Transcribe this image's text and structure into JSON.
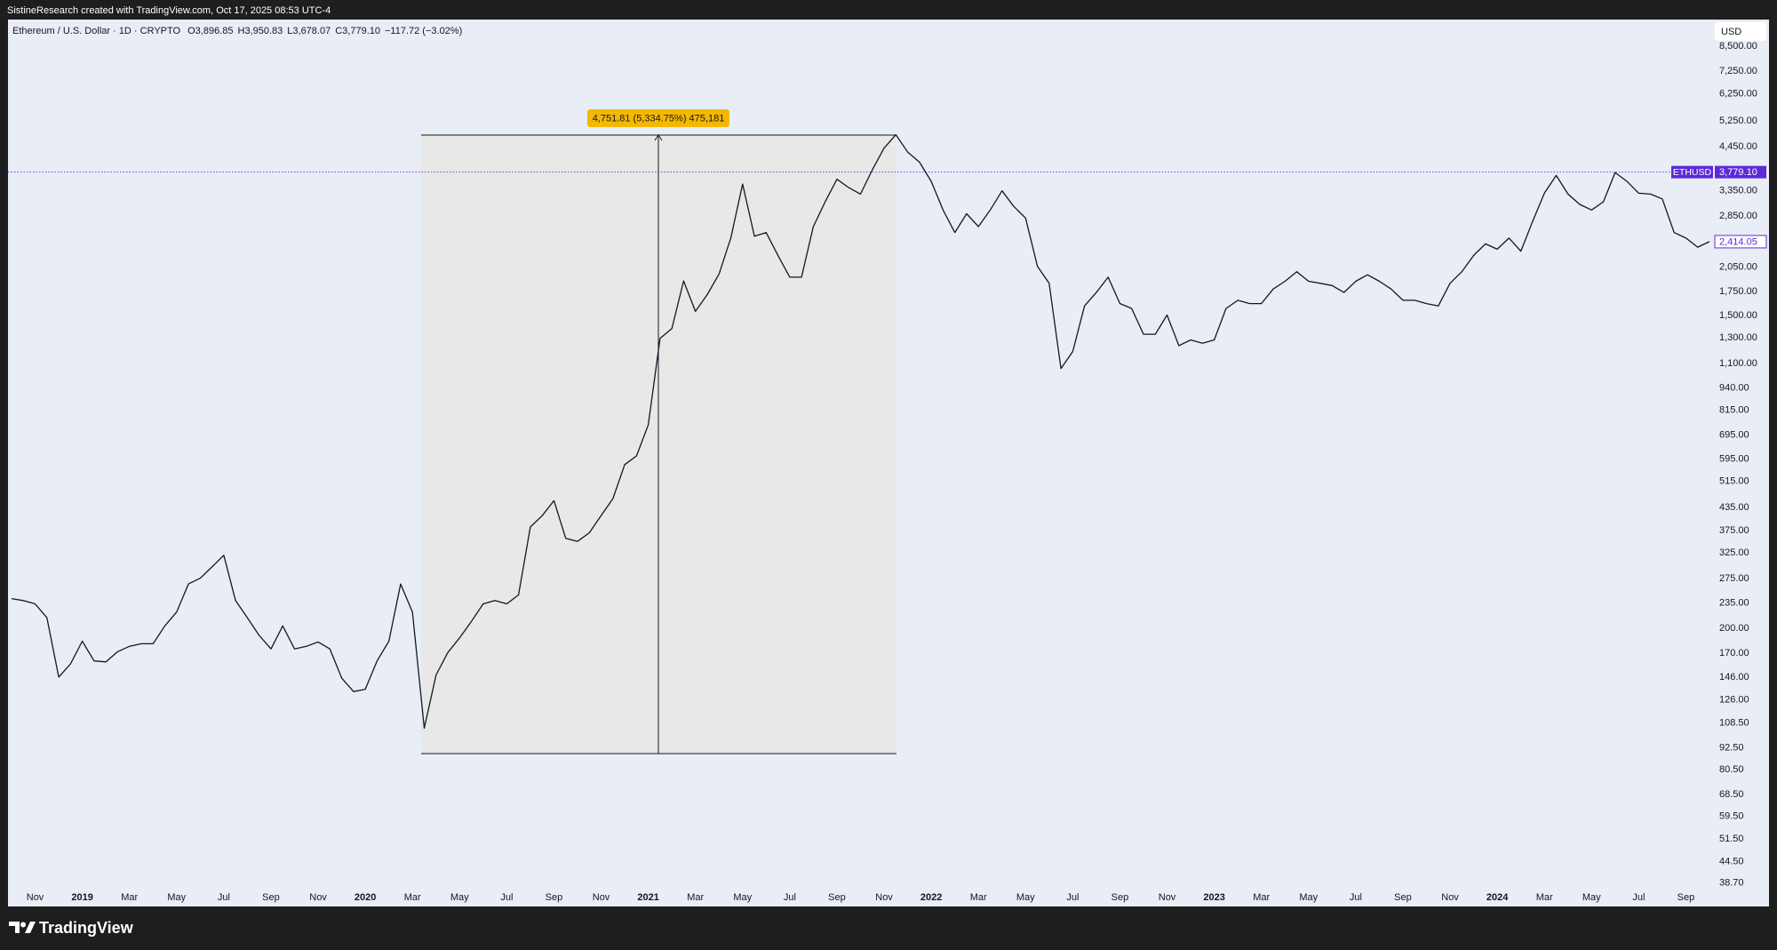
{
  "watermark": "SistineResearch created with TradingView.com, Oct 17, 2025 08:53 UTC-4",
  "brand": "TradingView",
  "chart_data": {
    "type": "line",
    "title": "Ethereum / U.S. Dollar · 1D · CRYPTO",
    "ohlc": [
      {
        "label": "O",
        "value": "3,896.85"
      },
      {
        "label": "H",
        "value": "3,950.83"
      },
      {
        "label": "L",
        "value": "3,678.07"
      },
      {
        "label": "C",
        "value": "3,779.10"
      }
    ],
    "change": "−117.72 (−3.02%)",
    "currency": "USD",
    "yscale": "log",
    "grid": false,
    "color": "#131722",
    "measure_label": "4,751.81 (5,334.75%) 475,181",
    "price_line": {
      "name": "ETHUSD",
      "value": 3779.1,
      "label": "3,779.10",
      "color": "#5b2bd8"
    },
    "last_value_label": "2,414.05",
    "categories": [
      null,
      null,
      "Nov",
      null,
      null,
      null,
      "2019",
      null,
      null,
      null,
      "Mar",
      null,
      null,
      null,
      "May",
      null,
      null,
      null,
      "Jul",
      null,
      null,
      null,
      "Sep",
      null,
      null,
      null,
      "Nov",
      null,
      null,
      null,
      "2020",
      null,
      null,
      null,
      "Mar",
      null,
      null,
      null,
      "May",
      null,
      null,
      null,
      "Jul",
      null,
      null,
      null,
      "Sep",
      null,
      null,
      null,
      "Nov",
      null,
      null,
      null,
      "2021",
      null,
      null,
      null,
      "Mar",
      null,
      null,
      null,
      "May",
      null,
      null,
      null,
      "Jul",
      null,
      null,
      null,
      "Sep",
      null,
      null,
      null,
      "Nov",
      null,
      null,
      null,
      "2022",
      null,
      null,
      null,
      "Mar",
      null,
      null,
      null,
      "May",
      null,
      null,
      null,
      "Jul",
      null,
      null,
      null,
      "Sep",
      null,
      null,
      null,
      "Nov",
      null,
      null,
      null,
      "2023",
      null,
      null,
      null,
      "Mar",
      null,
      null,
      null,
      "May",
      null,
      null,
      null,
      "Jul",
      null,
      null,
      null,
      "Sep",
      null,
      null,
      null,
      "Nov",
      null,
      null,
      null,
      "2024",
      null,
      null,
      null,
      "Mar",
      null,
      null,
      null,
      "May",
      null,
      null,
      null,
      "Jul",
      null,
      null,
      null,
      "Sep",
      null,
      null
    ],
    "values": [
      242,
      239,
      234,
      214,
      146,
      159,
      184,
      162,
      161,
      172,
      178,
      181,
      181,
      203,
      222,
      266,
      276,
      297,
      320,
      239,
      214,
      191,
      175,
      203,
      175,
      178,
      183,
      175,
      145,
      133,
      135,
      162,
      184,
      266,
      222,
      105,
      148,
      171,
      188,
      209,
      234,
      239,
      234,
      248,
      384,
      413,
      455,
      357,
      350,
      370,
      413,
      461,
      574,
      607,
      741,
      1295,
      1380,
      1875,
      1540,
      1716,
      1960,
      2470,
      3500,
      2500,
      2560,
      2210,
      1920,
      1920,
      2660,
      3120,
      3610,
      3420,
      3280,
      3835,
      4410,
      4810,
      4300,
      4030,
      3560,
      2960,
      2560,
      2890,
      2660,
      2960,
      3350,
      3030,
      2810,
      2060,
      1846,
      1066,
      1190,
      1595,
      1740,
      1920,
      1620,
      1570,
      1330,
      1330,
      1505,
      1236,
      1282,
      1255,
      1282,
      1570,
      1655,
      1620,
      1620,
      1780,
      1870,
      1990,
      1870,
      1846,
      1820,
      1740,
      1870,
      1950,
      1870,
      1780,
      1655,
      1655,
      1620,
      1595,
      1846,
      1990,
      2210,
      2380,
      2300,
      2470,
      2270,
      2750,
      3300,
      3700,
      3280,
      3070,
      2960,
      3120,
      3770,
      3560,
      3300,
      3280,
      3180,
      2560,
      2470,
      2330,
      2414.05
    ],
    "ylim": [
      33.3,
      10100
    ],
    "yticks": [
      {
        "value": 8500,
        "label": "8,500.00"
      },
      {
        "value": 7250,
        "label": "7,250.00"
      },
      {
        "value": 6250,
        "label": "6,250.00"
      },
      {
        "value": 5250,
        "label": "5,250.00"
      },
      {
        "value": 4450,
        "label": "4,450.00"
      },
      {
        "value": 3350,
        "label": "3,350.00"
      },
      {
        "value": 2850,
        "label": "2,850.00"
      },
      {
        "value": 2050,
        "label": "2,050.00"
      },
      {
        "value": 1750,
        "label": "1,750.00"
      },
      {
        "value": 1500,
        "label": "1,500.00"
      },
      {
        "value": 1300,
        "label": "1,300.00"
      },
      {
        "value": 1100,
        "label": "1,100.00"
      },
      {
        "value": 940,
        "label": "940.00"
      },
      {
        "value": 815,
        "label": "815.00"
      },
      {
        "value": 695,
        "label": "695.00"
      },
      {
        "value": 595,
        "label": "595.00"
      },
      {
        "value": 515,
        "label": "515.00"
      },
      {
        "value": 435,
        "label": "435.00"
      },
      {
        "value": 375,
        "label": "375.00"
      },
      {
        "value": 325,
        "label": "325.00"
      },
      {
        "value": 275,
        "label": "275.00"
      },
      {
        "value": 235,
        "label": "235.00"
      },
      {
        "value": 200,
        "label": "200.00"
      },
      {
        "value": 170,
        "label": "170.00"
      },
      {
        "value": 146,
        "label": "146.00"
      },
      {
        "value": 126,
        "label": "126.00"
      },
      {
        "value": 108.5,
        "label": "108.50"
      },
      {
        "value": 92.5,
        "label": "92.50"
      },
      {
        "value": 80.5,
        "label": "80.50"
      },
      {
        "value": 68.5,
        "label": "68.50"
      },
      {
        "value": 59.5,
        "label": "59.50"
      },
      {
        "value": 51.5,
        "label": "51.50"
      },
      {
        "value": 44.5,
        "label": "44.50"
      },
      {
        "value": 38.7,
        "label": "38.70"
      }
    ]
  }
}
